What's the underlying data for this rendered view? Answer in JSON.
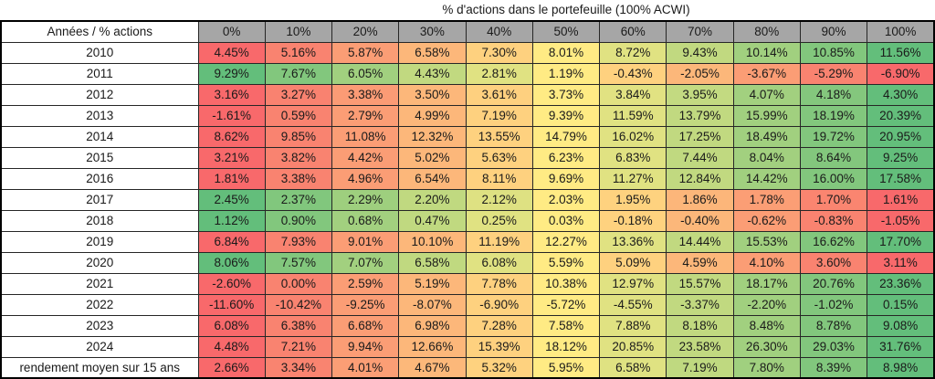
{
  "title": "% d'actions dans le portefeuille (100% ACWI)",
  "chart_data": {
    "type": "heatmap",
    "title": "% d'actions dans le portefeuille (100% ACWI)",
    "corner_label": "Années / % actions",
    "columns": [
      "0%",
      "10%",
      "20%",
      "30%",
      "40%",
      "50%",
      "60%",
      "70%",
      "80%",
      "90%",
      "100%"
    ],
    "rows": [
      {
        "label": "2010",
        "values": [
          4.45,
          5.16,
          5.87,
          6.58,
          7.3,
          8.01,
          8.72,
          9.43,
          10.14,
          10.85,
          11.56
        ]
      },
      {
        "label": "2011",
        "values": [
          9.29,
          7.67,
          6.05,
          4.43,
          2.81,
          1.19,
          -0.43,
          -2.05,
          -3.67,
          -5.29,
          -6.9
        ]
      },
      {
        "label": "2012",
        "values": [
          3.16,
          3.27,
          3.38,
          3.5,
          3.61,
          3.73,
          3.84,
          3.95,
          4.07,
          4.18,
          4.3
        ]
      },
      {
        "label": "2013",
        "values": [
          -1.61,
          0.59,
          2.79,
          4.99,
          7.19,
          9.39,
          11.59,
          13.79,
          15.99,
          18.19,
          20.39
        ]
      },
      {
        "label": "2014",
        "values": [
          8.62,
          9.85,
          11.08,
          12.32,
          13.55,
          14.79,
          16.02,
          17.25,
          18.49,
          19.72,
          20.95
        ]
      },
      {
        "label": "2015",
        "values": [
          3.21,
          3.82,
          4.42,
          5.02,
          5.63,
          6.23,
          6.83,
          7.44,
          8.04,
          8.64,
          9.25
        ]
      },
      {
        "label": "2016",
        "values": [
          1.81,
          3.38,
          4.96,
          6.54,
          8.11,
          9.69,
          11.27,
          12.84,
          14.42,
          16.0,
          17.58
        ]
      },
      {
        "label": "2017",
        "values": [
          2.45,
          2.37,
          2.29,
          2.2,
          2.12,
          2.03,
          1.95,
          1.86,
          1.78,
          1.7,
          1.61
        ]
      },
      {
        "label": "2018",
        "values": [
          1.12,
          0.9,
          0.68,
          0.47,
          0.25,
          0.03,
          -0.18,
          -0.4,
          -0.62,
          -0.83,
          -1.05
        ]
      },
      {
        "label": "2019",
        "values": [
          6.84,
          7.93,
          9.01,
          10.1,
          11.19,
          12.27,
          13.36,
          14.44,
          15.53,
          16.62,
          17.7
        ]
      },
      {
        "label": "2020",
        "values": [
          8.06,
          7.57,
          7.07,
          6.58,
          6.08,
          5.59,
          5.09,
          4.59,
          4.1,
          3.6,
          3.11
        ]
      },
      {
        "label": "2021",
        "values": [
          -2.6,
          0.0,
          2.59,
          5.19,
          7.78,
          10.38,
          12.97,
          15.57,
          18.17,
          20.76,
          23.36
        ]
      },
      {
        "label": "2022",
        "values": [
          -11.6,
          -10.42,
          -9.25,
          -8.07,
          -6.9,
          -5.72,
          -4.55,
          -3.37,
          -2.2,
          -1.02,
          0.15
        ]
      },
      {
        "label": "2023",
        "values": [
          6.08,
          6.38,
          6.68,
          6.98,
          7.28,
          7.58,
          7.88,
          8.18,
          8.48,
          8.78,
          9.08
        ]
      },
      {
        "label": "2024",
        "values": [
          4.48,
          7.21,
          9.94,
          12.66,
          15.39,
          18.12,
          20.85,
          23.58,
          26.3,
          29.03,
          31.76
        ]
      },
      {
        "label": "rendement moyen sur 15 ans",
        "values": [
          2.66,
          3.34,
          4.01,
          4.67,
          5.32,
          5.95,
          6.58,
          7.19,
          7.8,
          8.39,
          8.98
        ]
      }
    ],
    "value_format": "two_decimals_percent",
    "colorscale": {
      "scope": "per_row",
      "min_color": "#F8696B",
      "mid_color": "#FFEB84",
      "max_color": "#63BE7B"
    },
    "header_bg": "#A6A6A6",
    "border_color": "#262626"
  }
}
